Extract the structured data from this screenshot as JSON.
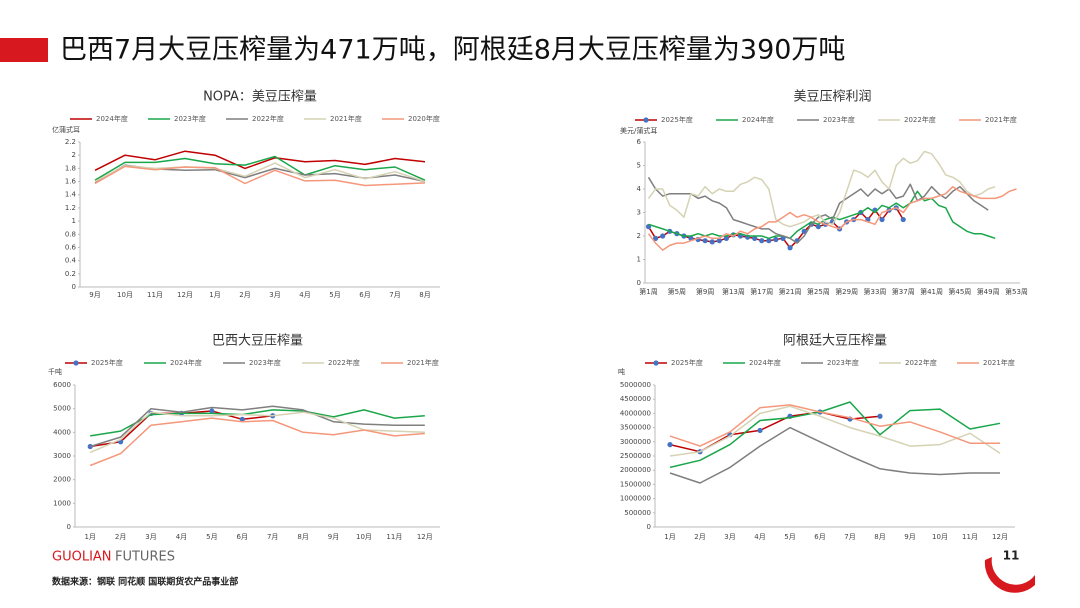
{
  "header": {
    "title": "巴西7月大豆压榨量为471万吨，阿根廷8月大豆压榨量为390万吨"
  },
  "footer": {
    "brand": "GUOLIAN",
    "brand_suffix": "FUTURES",
    "source": "数据来源：钢联  同花顺  国联期货农产品事业部",
    "page": "11"
  },
  "chart_data": [
    {
      "type": "line",
      "title": "NOPA：美豆压榨量",
      "y_label": "亿蒲式耳",
      "legend": "top",
      "grid": false,
      "categories": [
        "9月",
        "10月",
        "11月",
        "12月",
        "1月",
        "2月",
        "3月",
        "4月",
        "5月",
        "6月",
        "7月",
        "8月"
      ],
      "ylim": [
        0,
        2.2
      ],
      "yticks": [
        0,
        0.2,
        0.4,
        0.6,
        0.8,
        1,
        1.2,
        1.4,
        1.6,
        1.8,
        2,
        2.2
      ],
      "series": [
        {
          "name": "2024年度",
          "color": "#c00000",
          "values": [
            1.77,
            2.0,
            1.93,
            2.06,
            2.0,
            1.8,
            1.96,
            1.9,
            1.92,
            1.86,
            1.95,
            1.9
          ]
        },
        {
          "name": "2023年度",
          "color": "#1aa64a",
          "values": [
            1.62,
            1.89,
            1.89,
            1.95,
            1.87,
            1.85,
            1.98,
            1.7,
            1.84,
            1.78,
            1.82,
            1.62
          ]
        },
        {
          "name": "2022年度",
          "color": "#7f7f7f",
          "values": [
            1.58,
            1.85,
            1.79,
            1.77,
            1.78,
            1.66,
            1.8,
            1.7,
            1.72,
            1.65,
            1.7,
            1.6
          ]
        },
        {
          "name": "2021年度",
          "color": "#d6d2b4",
          "values": [
            1.6,
            1.84,
            1.8,
            1.82,
            1.8,
            1.68,
            1.88,
            1.66,
            1.78,
            1.64,
            1.75,
            1.6
          ]
        },
        {
          "name": "2020年度",
          "color": "#f4977a",
          "values": [
            1.57,
            1.83,
            1.78,
            1.82,
            1.81,
            1.57,
            1.77,
            1.61,
            1.62,
            1.54,
            1.56,
            1.58
          ]
        }
      ]
    },
    {
      "type": "line",
      "title": "美豆压榨利润",
      "y_label": "美元/蒲式耳",
      "legend": "top",
      "grid": false,
      "categories": [
        "第1周",
        null,
        null,
        null,
        "第5周",
        null,
        null,
        null,
        "第9周",
        null,
        null,
        null,
        "第13周",
        null,
        null,
        null,
        "第17周",
        null,
        null,
        null,
        "第21周",
        null,
        null,
        null,
        "第25周",
        null,
        null,
        null,
        "第29周",
        null,
        null,
        null,
        "第33周",
        null,
        null,
        null,
        "第37周",
        null,
        null,
        null,
        "第41周",
        null,
        null,
        null,
        "第45周",
        null,
        null,
        null,
        "第49周",
        null,
        null,
        null,
        "第53周"
      ],
      "ylim": [
        0,
        6
      ],
      "yticks": [
        0,
        1,
        2,
        3,
        4,
        5,
        6
      ],
      "series": [
        {
          "name": "2025年度",
          "color": "#c00000",
          "marker_color": "#4472c4",
          "values": [
            2.4,
            1.9,
            2.0,
            2.2,
            2.1,
            2.0,
            1.9,
            1.85,
            1.8,
            1.75,
            1.8,
            1.9,
            2.05,
            2.0,
            1.95,
            1.9,
            1.8,
            1.8,
            1.85,
            1.9,
            1.5,
            1.8,
            2.2,
            2.5,
            2.4,
            2.5,
            2.6,
            2.3,
            2.6,
            2.7,
            3.0,
            2.7,
            3.1,
            2.7,
            3.1,
            3.2,
            2.7,
            null,
            null,
            null,
            null,
            null,
            null,
            null,
            null,
            null,
            null,
            null,
            null,
            null,
            null,
            null,
            null
          ]
        },
        {
          "name": "2024年度",
          "color": "#1aa64a",
          "values": [
            2.5,
            2.4,
            2.3,
            2.2,
            2.1,
            2.0,
            2.0,
            2.1,
            2.0,
            2.1,
            2.0,
            2.0,
            2.1,
            2.1,
            2.0,
            2.0,
            2.0,
            1.9,
            2.0,
            2.0,
            1.9,
            2.2,
            2.4,
            2.6,
            2.5,
            2.7,
            2.8,
            2.7,
            2.8,
            2.9,
            3.0,
            3.2,
            3.0,
            3.3,
            3.2,
            3.4,
            3.2,
            3.4,
            3.9,
            3.5,
            3.6,
            3.3,
            3.2,
            2.6,
            2.4,
            2.2,
            2.1,
            2.1,
            2.0,
            1.9,
            null,
            null,
            null
          ]
        },
        {
          "name": "2023年度",
          "color": "#7f7f7f",
          "values": [
            4.5,
            4.0,
            3.7,
            3.8,
            3.8,
            3.8,
            3.8,
            3.6,
            3.7,
            3.5,
            3.4,
            3.2,
            2.7,
            2.6,
            2.5,
            2.4,
            2.3,
            2.3,
            2.1,
            2.0,
            1.9,
            1.7,
            2.0,
            2.5,
            2.8,
            2.9,
            2.7,
            3.4,
            3.6,
            3.8,
            4.0,
            3.7,
            4.0,
            3.8,
            4.0,
            3.6,
            3.7,
            4.2,
            3.5,
            3.7,
            4.1,
            3.8,
            3.6,
            3.9,
            4.1,
            3.8,
            3.5,
            3.3,
            3.1,
            null,
            null,
            null,
            null
          ]
        },
        {
          "name": "2022年度",
          "color": "#d6d2b4",
          "values": [
            3.6,
            4.0,
            4.0,
            3.3,
            3.1,
            2.8,
            3.8,
            3.7,
            4.1,
            3.8,
            4.0,
            3.9,
            3.9,
            4.2,
            4.3,
            4.5,
            4.4,
            4.0,
            2.7,
            2.5,
            2.4,
            2.5,
            2.6,
            2.8,
            2.9,
            2.6,
            2.5,
            3.0,
            3.9,
            4.8,
            4.7,
            4.5,
            4.8,
            4.3,
            4.0,
            5.0,
            5.3,
            5.1,
            5.2,
            5.6,
            5.5,
            5.1,
            4.6,
            4.5,
            4.3,
            3.9,
            3.7,
            3.8,
            4.0,
            4.1,
            null,
            null,
            null
          ]
        },
        {
          "name": "2021年度",
          "color": "#f4977a",
          "values": [
            2.1,
            1.7,
            1.4,
            1.6,
            1.7,
            1.7,
            1.8,
            1.9,
            2.0,
            1.9,
            1.9,
            2.1,
            2.0,
            2.2,
            2.1,
            2.3,
            2.4,
            2.6,
            2.6,
            2.8,
            3.0,
            2.8,
            2.9,
            2.8,
            2.6,
            2.5,
            2.4,
            2.3,
            2.6,
            2.7,
            2.7,
            2.6,
            2.5,
            3.0,
            3.1,
            3.2,
            3.0,
            3.4,
            3.5,
            3.6,
            3.6,
            3.7,
            3.8,
            4.1,
            3.9,
            3.8,
            3.7,
            3.6,
            3.6,
            3.6,
            3.7,
            3.9,
            4.0
          ]
        }
      ]
    },
    {
      "type": "line",
      "title": "巴西大豆压榨量",
      "y_label": "千吨",
      "legend": "top",
      "grid": false,
      "categories": [
        "1月",
        "2月",
        "3月",
        "4月",
        "5月",
        "6月",
        "7月",
        "8月",
        "9月",
        "10月",
        "11月",
        "12月"
      ],
      "ylim": [
        0,
        6000
      ],
      "yticks": [
        0,
        1000,
        2000,
        3000,
        4000,
        5000,
        6000
      ],
      "series": [
        {
          "name": "2025年度",
          "color": "#c00000",
          "marker_color": "#4472c4",
          "values": [
            3400,
            3600,
            4800,
            4800,
            4900,
            4550,
            4700,
            null,
            null,
            null,
            null,
            null
          ]
        },
        {
          "name": "2024年度",
          "color": "#1aa64a",
          "values": [
            3850,
            4050,
            4750,
            4800,
            4800,
            4750,
            4950,
            4900,
            4650,
            4950,
            4600,
            4700
          ]
        },
        {
          "name": "2023年度",
          "color": "#7f7f7f",
          "values": [
            3400,
            3800,
            5000,
            4850,
            5050,
            4950,
            5100,
            4950,
            4450,
            4350,
            4300,
            4300
          ]
        },
        {
          "name": "2022年度",
          "color": "#d6d2b4",
          "values": [
            3150,
            3700,
            4850,
            4700,
            4700,
            4750,
            4700,
            4850,
            4600,
            4100,
            4050,
            4000
          ]
        },
        {
          "name": "2021年度",
          "color": "#f4977a",
          "values": [
            2600,
            3100,
            4300,
            4450,
            4600,
            4450,
            4500,
            4000,
            3900,
            4100,
            3850,
            3950
          ]
        }
      ]
    },
    {
      "type": "line",
      "title": "阿根廷大豆压榨量",
      "y_label": "吨",
      "legend": "top",
      "grid": false,
      "categories": [
        "1月",
        "2月",
        "3月",
        "4月",
        "5月",
        "6月",
        "7月",
        "8月",
        "9月",
        "10月",
        "11月",
        "12月"
      ],
      "ylim": [
        0,
        5000000
      ],
      "yticks": [
        0,
        500000,
        1000000,
        1500000,
        2000000,
        2500000,
        3000000,
        3500000,
        4000000,
        4500000,
        5000000
      ],
      "series": [
        {
          "name": "2025年度",
          "color": "#c00000",
          "marker_color": "#4472c4",
          "values": [
            2900000,
            2650000,
            3250000,
            3400000,
            3900000,
            4050000,
            3800000,
            3900000,
            null,
            null,
            null,
            null
          ]
        },
        {
          "name": "2024年度",
          "color": "#1aa64a",
          "values": [
            2100000,
            2350000,
            2900000,
            3750000,
            3850000,
            4050000,
            4400000,
            3250000,
            4100000,
            4150000,
            3450000,
            3650000
          ]
        },
        {
          "name": "2023年度",
          "color": "#7f7f7f",
          "values": [
            1900000,
            1550000,
            2100000,
            2850000,
            3500000,
            3000000,
            2500000,
            2050000,
            1900000,
            1850000,
            1900000,
            1900000
          ]
        },
        {
          "name": "2022年度",
          "color": "#d6d2b4",
          "values": [
            2500000,
            2650000,
            3200000,
            4000000,
            4250000,
            3900000,
            3500000,
            3200000,
            2850000,
            2900000,
            3300000,
            2600000
          ]
        },
        {
          "name": "2021年度",
          "color": "#f4977a",
          "values": [
            3200000,
            2850000,
            3350000,
            4200000,
            4300000,
            4050000,
            3850000,
            3550000,
            3700000,
            3350000,
            2950000,
            2950000
          ]
        }
      ]
    }
  ]
}
